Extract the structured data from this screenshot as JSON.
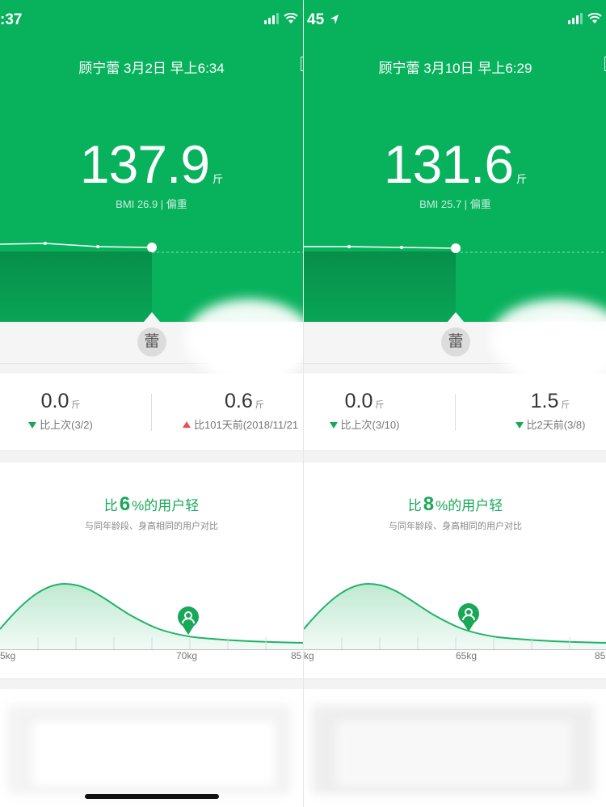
{
  "colors": {
    "primary_green": "#08b25d",
    "down_green": "#18a858",
    "up_red": "#e65050"
  },
  "panels": [
    {
      "status_time": ":37",
      "header": "顾宁蕾 3月2日 早上6:34",
      "weight": "137.9",
      "weight_unit": "斤",
      "bmi": "BMI 26.9 | 偏重",
      "avatar": "蕾",
      "stats": [
        {
          "value": "0.0",
          "unit": "斤",
          "direction": "down",
          "compare": "比上次(3/2)"
        },
        {
          "value": "0.6",
          "unit": "斤",
          "direction": "up",
          "compare": "比101天前(2018/11/21"
        }
      ],
      "comparison": {
        "prefix": "比",
        "percent": "6",
        "suffix": "%的用户轻",
        "subtitle": "与同年龄段、身高相同的用户对比"
      },
      "axis_labels": [
        "5kg",
        "70kg",
        "85"
      ],
      "user_marker_kg": 70
    },
    {
      "status_time": "45",
      "header": "顾宁蕾 3月10日 早上6:29",
      "weight": "131.6",
      "weight_unit": "斤",
      "bmi": "BMI 25.7 | 偏重",
      "avatar": "蕾",
      "stats": [
        {
          "value": "0.0",
          "unit": "斤",
          "direction": "down",
          "compare": "比上次(3/10)"
        },
        {
          "value": "1.5",
          "unit": "斤",
          "direction": "down",
          "compare": "比2天前(3/8)"
        }
      ],
      "comparison": {
        "prefix": "比",
        "percent": "8",
        "suffix": "%的用户轻",
        "subtitle": "与同年龄段、身高相同的用户对比"
      },
      "axis_labels": [
        "kg",
        "65kg",
        "85"
      ],
      "user_marker_kg": 65
    }
  ]
}
